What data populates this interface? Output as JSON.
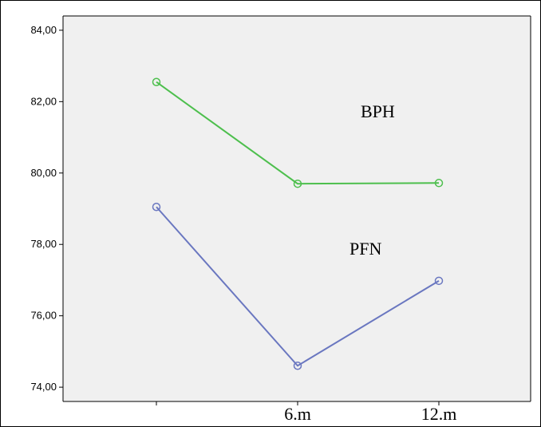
{
  "chart_data": {
    "type": "line",
    "categories": [
      "",
      "6.m",
      "12.m"
    ],
    "ylim": [
      73.6,
      84.4
    ],
    "y_ticks": [
      "84,00",
      "82,00",
      "80,00",
      "78,00",
      "76,00",
      "74,00"
    ],
    "y_tick_values": [
      84,
      82,
      80,
      78,
      76,
      74
    ],
    "grid": false,
    "series": [
      {
        "name": "BPH",
        "values": [
          82.55,
          79.7,
          79.72
        ],
        "color": "#4dbf4d"
      },
      {
        "name": "PFN",
        "values": [
          79.05,
          74.6,
          76.98
        ],
        "color": "#6a77c0"
      }
    ],
    "plot_background": "#f0f0f0"
  }
}
